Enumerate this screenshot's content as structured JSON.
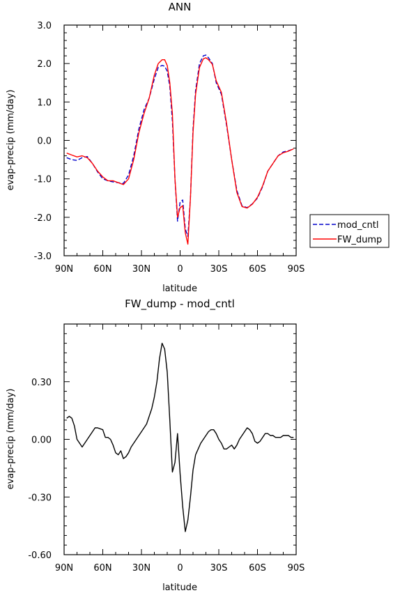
{
  "chart_data": [
    {
      "type": "line",
      "title": "ANN",
      "xlabel": "latitude",
      "ylabel": "evap-precip (mm/day)",
      "xlim": [
        90,
        -90
      ],
      "ylim": [
        -3.0,
        3.0
      ],
      "x_tick_values": [
        90,
        60,
        30,
        0,
        -30,
        -60,
        -90
      ],
      "x_tick_labels": [
        "90N",
        "60N",
        "30N",
        "0",
        "30S",
        "60S",
        "90S"
      ],
      "y_tick_values": [
        3.0,
        2.0,
        1.0,
        0.0,
        -1.0,
        -2.0,
        -3.0
      ],
      "y_tick_labels": [
        "3.0",
        "2.0",
        "1.0",
        "0.0",
        "-1.0",
        "-2.0",
        "-3.0"
      ],
      "legend_position": "right",
      "series": [
        {
          "name": "mod_cntl",
          "color": "#0000cc",
          "dash": "dashed",
          "x": [
            88,
            84,
            80,
            76,
            72,
            68,
            64,
            60,
            56,
            52,
            48,
            44,
            40,
            36,
            32,
            28,
            24,
            20,
            17,
            14,
            12,
            10,
            8,
            6,
            4,
            2,
            0,
            -2,
            -4,
            -6,
            -8,
            -10,
            -12,
            -15,
            -18,
            -20,
            -22,
            -25,
            -28,
            -32,
            -36,
            -40,
            -44,
            -48,
            -52,
            -56,
            -60,
            -64,
            -68,
            -72,
            -76,
            -80,
            -84,
            -88
          ],
          "y": [
            -0.45,
            -0.5,
            -0.52,
            -0.45,
            -0.42,
            -0.6,
            -0.82,
            -1.0,
            -1.05,
            -1.08,
            -1.1,
            -1.12,
            -0.9,
            -0.4,
            0.3,
            0.8,
            1.1,
            1.6,
            1.9,
            1.95,
            1.93,
            1.8,
            1.4,
            0.5,
            -1.0,
            -2.1,
            -1.6,
            -1.55,
            -2.3,
            -2.5,
            -1.5,
            0.3,
            1.3,
            2.0,
            2.2,
            2.22,
            2.15,
            2.0,
            1.5,
            1.2,
            0.4,
            -0.5,
            -1.3,
            -1.7,
            -1.75,
            -1.65,
            -1.5,
            -1.2,
            -0.8,
            -0.6,
            -0.4,
            -0.3,
            -0.27,
            -0.22
          ]
        },
        {
          "name": "FW_dump",
          "color": "#ff0000",
          "dash": "solid",
          "x": [
            88,
            84,
            80,
            76,
            72,
            68,
            64,
            60,
            56,
            52,
            48,
            44,
            40,
            36,
            32,
            28,
            24,
            20,
            17,
            14,
            12,
            10,
            8,
            6,
            4,
            2,
            0,
            -2,
            -4,
            -6,
            -8,
            -10,
            -12,
            -15,
            -18,
            -20,
            -22,
            -25,
            -28,
            -32,
            -36,
            -40,
            -44,
            -48,
            -52,
            -56,
            -60,
            -64,
            -68,
            -72,
            -76,
            -80,
            -84,
            -88
          ],
          "y": [
            -0.33,
            -0.38,
            -0.43,
            -0.4,
            -0.45,
            -0.6,
            -0.8,
            -0.95,
            -1.05,
            -1.05,
            -1.1,
            -1.15,
            -1.0,
            -0.5,
            0.2,
            0.7,
            1.1,
            1.7,
            2.0,
            2.1,
            2.1,
            1.95,
            1.5,
            0.7,
            -1.0,
            -2.0,
            -1.75,
            -1.7,
            -2.4,
            -2.7,
            -1.5,
            0.2,
            1.2,
            1.9,
            2.12,
            2.15,
            2.1,
            1.98,
            1.55,
            1.25,
            0.45,
            -0.5,
            -1.35,
            -1.72,
            -1.76,
            -1.66,
            -1.48,
            -1.18,
            -0.8,
            -0.6,
            -0.4,
            -0.32,
            -0.28,
            -0.22
          ]
        }
      ]
    },
    {
      "type": "line",
      "title": "FW_dump - mod_cntl",
      "xlabel": "latitude",
      "ylabel": "evap-precip (mm/day)",
      "xlim": [
        90,
        -90
      ],
      "ylim": [
        -0.6,
        0.6
      ],
      "x_tick_values": [
        90,
        60,
        30,
        0,
        -30,
        -60,
        -90
      ],
      "x_tick_labels": [
        "90N",
        "60N",
        "30N",
        "0",
        "30S",
        "60S",
        "90S"
      ],
      "y_tick_values": [
        0.3,
        0.0,
        -0.3,
        -0.6
      ],
      "y_tick_labels": [
        "0.30",
        "0.00",
        "-0.30",
        "-0.60"
      ],
      "series": [
        {
          "color": "#000000",
          "dash": "solid",
          "x": [
            88,
            86,
            84,
            82,
            80,
            76,
            72,
            68,
            66,
            64,
            60,
            58,
            56,
            54,
            52,
            50,
            48,
            46,
            44,
            42,
            40,
            38,
            36,
            34,
            32,
            30,
            28,
            26,
            24,
            22,
            20,
            18,
            16,
            14,
            12,
            10,
            8,
            6,
            4,
            2,
            0,
            -2,
            -4,
            -6,
            -8,
            -10,
            -12,
            -14,
            -16,
            -18,
            -20,
            -22,
            -24,
            -26,
            -28,
            -30,
            -32,
            -34,
            -36,
            -38,
            -40,
            -42,
            -44,
            -46,
            -48,
            -50,
            -52,
            -54,
            -56,
            -58,
            -60,
            -62,
            -64,
            -66,
            -68,
            -70,
            -72,
            -74,
            -76,
            -78,
            -80,
            -82,
            -84,
            -86,
            -88
          ],
          "y": [
            0.11,
            0.12,
            0.11,
            0.07,
            0.0,
            -0.04,
            0.0,
            0.04,
            0.06,
            0.06,
            0.05,
            0.01,
            0.01,
            0.0,
            -0.03,
            -0.07,
            -0.08,
            -0.06,
            -0.1,
            -0.09,
            -0.07,
            -0.04,
            -0.02,
            0.0,
            0.02,
            0.04,
            0.06,
            0.08,
            0.12,
            0.16,
            0.22,
            0.3,
            0.42,
            0.5,
            0.47,
            0.35,
            0.1,
            -0.17,
            -0.12,
            0.03,
            -0.18,
            -0.35,
            -0.48,
            -0.42,
            -0.3,
            -0.16,
            -0.08,
            -0.05,
            -0.02,
            0.0,
            0.02,
            0.04,
            0.05,
            0.05,
            0.03,
            0.0,
            -0.02,
            -0.05,
            -0.05,
            -0.04,
            -0.03,
            -0.05,
            -0.03,
            0.0,
            0.02,
            0.04,
            0.06,
            0.05,
            0.03,
            -0.01,
            -0.02,
            -0.01,
            0.01,
            0.03,
            0.03,
            0.02,
            0.02,
            0.01,
            0.01,
            0.01,
            0.02,
            0.02,
            0.02,
            0.01,
            0.01
          ]
        }
      ]
    }
  ]
}
